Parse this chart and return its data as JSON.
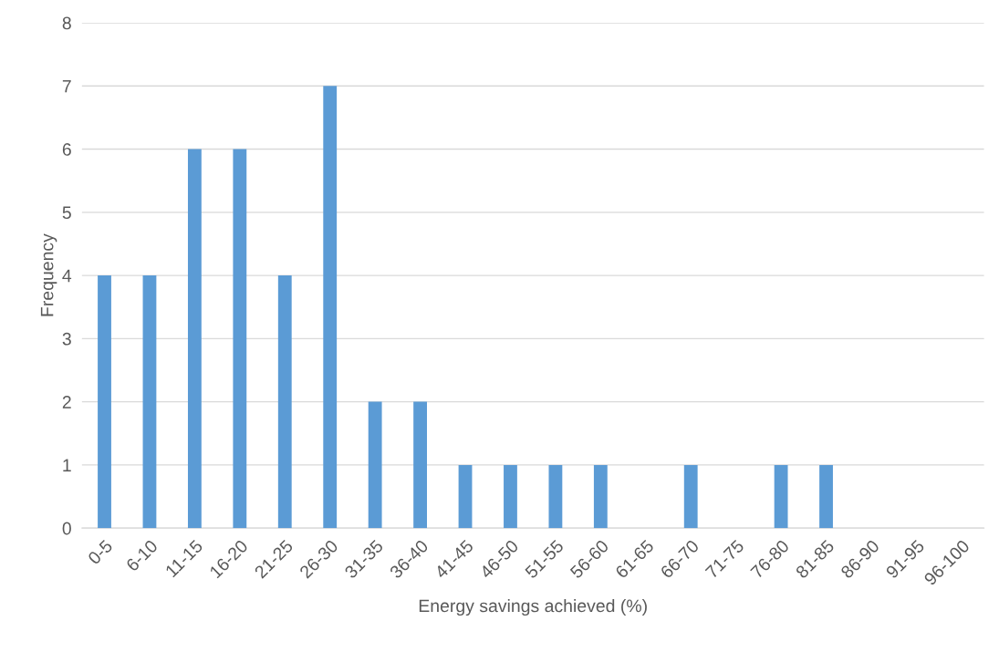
{
  "chart_data": {
    "type": "bar",
    "xlabel": "Energy savings achieved (%)",
    "ylabel": "Frequency",
    "categories": [
      "0-5",
      "6-10",
      "11-15",
      "16-20",
      "21-25",
      "26-30",
      "31-35",
      "36-40",
      "41-45",
      "46-50",
      "51-55",
      "56-60",
      "61-65",
      "66-70",
      "71-75",
      "76-80",
      "81-85",
      "86-90",
      "91-95",
      "96-100"
    ],
    "values": [
      4,
      4,
      6,
      6,
      4,
      7,
      2,
      2,
      1,
      1,
      1,
      1,
      0,
      1,
      0,
      1,
      1,
      0,
      0,
      0
    ],
    "color": "#5b9bd5",
    "ylim": [
      0,
      8
    ],
    "yticks": [
      0,
      1,
      2,
      3,
      4,
      5,
      6,
      7,
      8
    ],
    "grid": "y",
    "legend": false
  }
}
